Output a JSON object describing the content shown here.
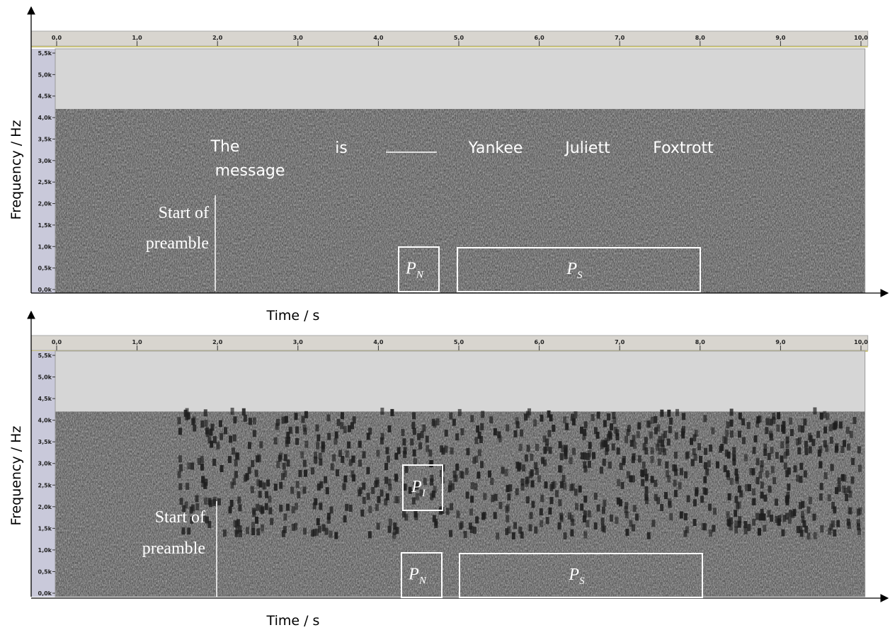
{
  "chart_data": [
    {
      "type": "spectrogram",
      "xlabel": "Time / s",
      "ylabel": "Frequency / Hz",
      "xlim": [
        0,
        10.05
      ],
      "ylim": [
        0,
        5600
      ],
      "xticks": [
        {
          "value": 0,
          "label": "0,0"
        },
        {
          "value": 1,
          "label": "1,0"
        },
        {
          "value": 2,
          "label": "2,0"
        },
        {
          "value": 3,
          "label": "3,0"
        },
        {
          "value": 4,
          "label": "4,0"
        },
        {
          "value": 5,
          "label": "5,0"
        },
        {
          "value": 6,
          "label": "6,0"
        },
        {
          "value": 7,
          "label": "7,0"
        },
        {
          "value": 8,
          "label": "8,0"
        },
        {
          "value": 9,
          "label": "9,0"
        },
        {
          "value": 10,
          "label": "10,0"
        }
      ],
      "yticks": [
        {
          "value": 0,
          "label": "0,0k"
        },
        {
          "value": 500,
          "label": "0,5k"
        },
        {
          "value": 1000,
          "label": "1,0k"
        },
        {
          "value": 1500,
          "label": "1,5k"
        },
        {
          "value": 2000,
          "label": "2,0k"
        },
        {
          "value": 2500,
          "label": "2,5k"
        },
        {
          "value": 3000,
          "label": "3,0k"
        },
        {
          "value": 3500,
          "label": "3,5k"
        },
        {
          "value": 4000,
          "label": "4,0k"
        },
        {
          "value": 4500,
          "label": "4,5k"
        },
        {
          "value": 5000,
          "label": "5,0k"
        },
        {
          "value": 5500,
          "label": "5,5k"
        }
      ],
      "words": [
        "The",
        "message",
        "is",
        "Yankee",
        "Juliett",
        "Foxtrott"
      ],
      "bracket_label": [
        "Start of",
        "preamble"
      ],
      "boxes": [
        {
          "text": "P",
          "subscript": "N"
        },
        {
          "text": "P",
          "subscript": "S"
        }
      ]
    },
    {
      "type": "spectrogram",
      "xlabel": "Time / s",
      "ylabel": "Frequency / Hz",
      "xlim": [
        0,
        10.05
      ],
      "ylim": [
        0,
        5600
      ],
      "xticks": [
        {
          "value": 0,
          "label": "0,0"
        },
        {
          "value": 1,
          "label": "1,0"
        },
        {
          "value": 2,
          "label": "2,0"
        },
        {
          "value": 3,
          "label": "3,0"
        },
        {
          "value": 4,
          "label": "4,0"
        },
        {
          "value": 5,
          "label": "5,0"
        },
        {
          "value": 6,
          "label": "6,0"
        },
        {
          "value": 7,
          "label": "7,0"
        },
        {
          "value": 8,
          "label": "8,0"
        },
        {
          "value": 9,
          "label": "9,0"
        },
        {
          "value": 10,
          "label": "10,0"
        }
      ],
      "yticks": [
        {
          "value": 0,
          "label": "0,0k"
        },
        {
          "value": 500,
          "label": "0,5k"
        },
        {
          "value": 1000,
          "label": "1,0k"
        },
        {
          "value": 1500,
          "label": "1,5k"
        },
        {
          "value": 2000,
          "label": "2,0k"
        },
        {
          "value": 2500,
          "label": "2,5k"
        },
        {
          "value": 3000,
          "label": "3,0k"
        },
        {
          "value": 3500,
          "label": "3,5k"
        },
        {
          "value": 4000,
          "label": "4,0k"
        },
        {
          "value": 4500,
          "label": "4,5k"
        },
        {
          "value": 5000,
          "label": "5,0k"
        },
        {
          "value": 5500,
          "label": "5,5k"
        }
      ],
      "bracket_label": [
        "Start of",
        "preamble"
      ],
      "boxes": [
        {
          "text": "P",
          "subscript": "I"
        },
        {
          "text": "P",
          "subscript": "N"
        },
        {
          "text": "P",
          "subscript": "S"
        }
      ]
    }
  ]
}
